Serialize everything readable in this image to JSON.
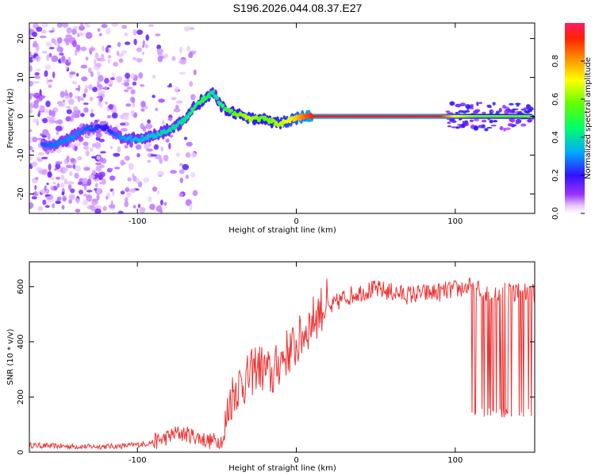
{
  "title": "S196.2026.044.08.37.E27",
  "chart_data": [
    {
      "type": "heatmap",
      "xlabel": "Height of straight line (km)",
      "ylabel": "Frequency (Hz)",
      "xlim": [
        -168,
        150
      ],
      "ylim": [
        -25,
        24
      ],
      "xticks": [
        -100,
        0,
        100
      ],
      "xtick_labels": [
        "-100",
        "0",
        "100"
      ],
      "yticks": [
        -20,
        -10,
        0,
        10,
        20
      ],
      "ytick_labels": [
        "-20",
        "-10",
        "0",
        "10",
        "20"
      ],
      "ridge": {
        "x": [
          -160,
          -150,
          -140,
          -130,
          -120,
          -110,
          -100,
          -90,
          -80,
          -72,
          -65,
          -58,
          -52,
          -48,
          -44,
          -40,
          -35,
          -30,
          -25,
          -20,
          -15,
          -10,
          -5,
          0,
          5,
          10,
          15,
          30,
          60,
          90,
          100,
          110,
          120,
          130,
          140,
          148
        ],
        "freq": [
          -7.5,
          -7,
          -5,
          -3,
          -3,
          -5.5,
          -6,
          -5,
          -3.5,
          -1.5,
          2,
          4.5,
          6,
          3,
          1.5,
          1,
          0.5,
          -0.5,
          -0.5,
          -0.8,
          -1.5,
          -2,
          -1,
          -0.5,
          0,
          0,
          0,
          0,
          0,
          0,
          0,
          0,
          0,
          0,
          0,
          0
        ],
        "amplitude": [
          0.25,
          0.28,
          0.3,
          0.25,
          0.2,
          0.3,
          0.35,
          0.35,
          0.4,
          0.4,
          0.45,
          0.5,
          0.4,
          0.45,
          0.5,
          0.55,
          0.6,
          0.65,
          0.6,
          0.55,
          0.6,
          0.65,
          0.7,
          0.75,
          0.85,
          0.92,
          0.95,
          0.95,
          0.95,
          0.95,
          0.7,
          0.6,
          0.55,
          0.55,
          0.55,
          0.6
        ]
      },
      "colorbar": {
        "label": "Normalized spectral amplitude",
        "range": [
          0,
          1
        ],
        "ticks": [
          0.0,
          0.2,
          0.4,
          0.6,
          0.8
        ],
        "tick_labels": [
          "0.0",
          "0.2",
          "0.4",
          "0.6",
          "0.8"
        ],
        "colormap": "rainbow"
      }
    },
    {
      "type": "line",
      "xlabel": "Height of straight line (km)",
      "ylabel": "SNR (10 * v/v)",
      "xlim": [
        -168,
        150
      ],
      "ylim": [
        0,
        690
      ],
      "xticks": [
        -100,
        0,
        100
      ],
      "xtick_labels": [
        "-100",
        "0",
        "100"
      ],
      "yticks": [
        0,
        200,
        400,
        600
      ],
      "ytick_labels": [
        "0",
        "200",
        "400",
        "600"
      ],
      "series": [
        {
          "name": "SNR",
          "color": "#ee3333",
          "x": [
            -168,
            -150,
            -130,
            -110,
            -95,
            -85,
            -75,
            -65,
            -55,
            -45,
            -42,
            -38,
            -30,
            -25,
            -20,
            -15,
            -10,
            -5,
            0,
            5,
            10,
            15,
            20,
            25,
            30,
            40,
            50,
            60,
            70,
            80,
            90,
            100,
            110,
            115,
            120,
            130,
            140,
            150
          ],
          "values": [
            25,
            22,
            20,
            22,
            30,
            45,
            70,
            60,
            40,
            45,
            150,
            200,
            230,
            280,
            260,
            240,
            300,
            330,
            350,
            400,
            440,
            480,
            510,
            540,
            560,
            580,
            590,
            580,
            570,
            575,
            580,
            590,
            600,
            590,
            580,
            585,
            580,
            575
          ],
          "noise_note": "oscillating; strong drop-outs to ~130 between 110 and 148 km"
        }
      ]
    }
  ],
  "colors": {
    "line": "#ee3333",
    "frame": "#000000"
  }
}
